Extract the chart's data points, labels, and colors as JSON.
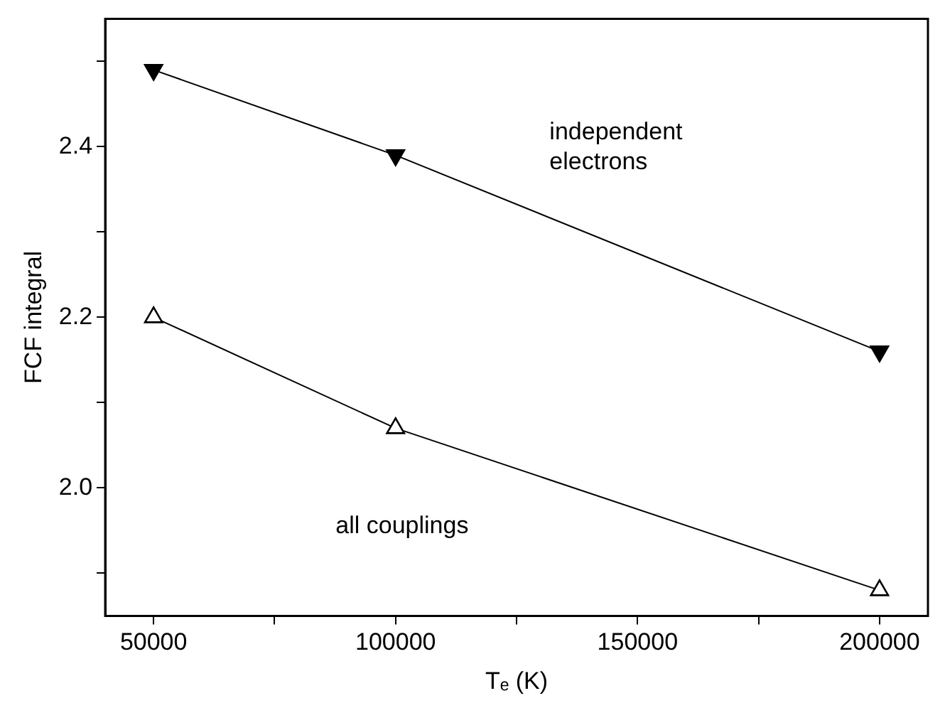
{
  "chart_data": {
    "type": "line",
    "xlabel": "Tₑ (K)",
    "ylabel": "FCF integral",
    "x": [
      50000,
      100000,
      200000
    ],
    "series": [
      {
        "color": "#000000",
        "values": [
          2.49,
          2.39,
          2.16
        ],
        "marker": "triangle_down"
      },
      {
        "color": "#000000",
        "values": [
          2.2,
          2.07,
          1.88
        ],
        "marker": "triangle"
      }
    ],
    "xlim": [
      40000,
      210000
    ],
    "xticks": [
      50000,
      {
        "value": 75000,
        "label": null
      },
      100000,
      {
        "value": 125000,
        "label": null
      },
      150000,
      {
        "value": 175000,
        "label": null
      },
      200000
    ],
    "ylim": [
      1.85,
      2.55
    ],
    "yticks": [
      {
        "value": 1.9,
        "label": null
      },
      {
        "value": 2,
        "label": "2.0"
      },
      {
        "value": 2.1,
        "label": null
      },
      2.2,
      {
        "value": 2.3,
        "label": null
      },
      2.4,
      {
        "value": 2.5,
        "label": null
      }
    ],
    "grid": false,
    "legend": false,
    "line_style": "solid",
    "annotations": [
      "independent\nelectrons",
      "all couplings"
    ]
  }
}
